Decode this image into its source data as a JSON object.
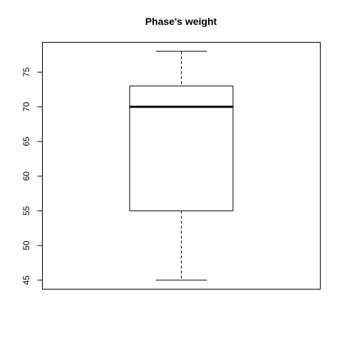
{
  "chart_data": {
    "type": "box",
    "title": "Phase's weight",
    "xlabel": "",
    "ylabel": "",
    "ylim": [
      43.7,
      79.3
    ],
    "yticks": [
      45,
      50,
      55,
      60,
      65,
      70,
      75
    ],
    "grid": false,
    "series": [
      {
        "min": 45,
        "q1": 55,
        "median": 70,
        "q3": 73,
        "max": 78
      }
    ]
  }
}
